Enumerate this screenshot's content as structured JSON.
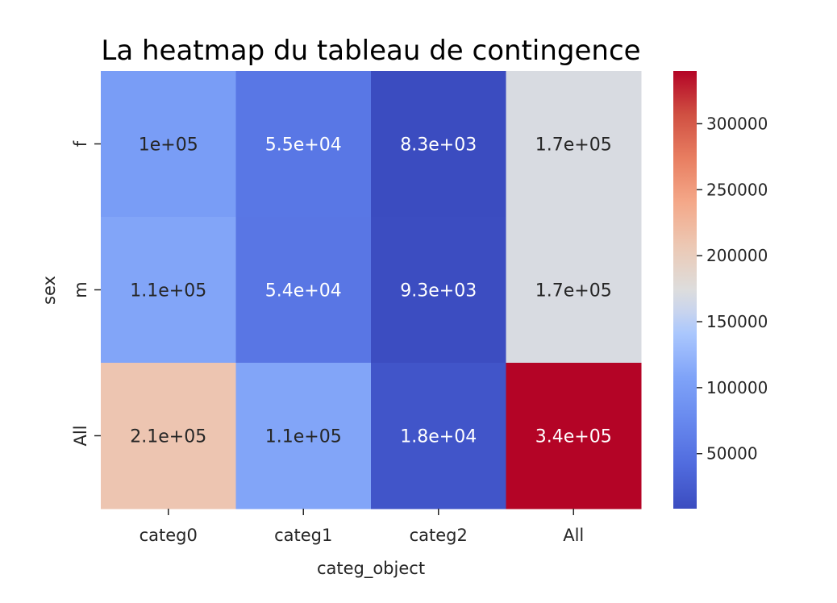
{
  "chart_data": {
    "type": "heatmap",
    "title": "La heatmap du tableau de contingence",
    "xlabel": "categ_object",
    "ylabel": "sex",
    "x_categories": [
      "categ0",
      "categ1",
      "categ2",
      "All"
    ],
    "y_categories": [
      "f",
      "m",
      "All"
    ],
    "values": [
      [
        100000,
        55000,
        8300,
        170000
      ],
      [
        110000,
        54000,
        9300,
        170000
      ],
      [
        210000,
        110000,
        18000,
        340000
      ]
    ],
    "cell_labels": [
      [
        "1e+05",
        "5.5e+04",
        "8.3e+03",
        "1.7e+05"
      ],
      [
        "1.1e+05",
        "5.4e+04",
        "9.3e+03",
        "1.7e+05"
      ],
      [
        "2.1e+05",
        "1.1e+05",
        "1.8e+04",
        "3.4e+05"
      ]
    ],
    "colormap": "coolwarm",
    "colorbar": {
      "range": [
        8300,
        340000
      ],
      "ticks": [
        50000,
        100000,
        150000,
        200000,
        250000,
        300000
      ],
      "tick_labels": [
        "50000",
        "100000",
        "150000",
        "200000",
        "250000",
        "300000"
      ]
    },
    "grid": false,
    "legend": "colorbar-right"
  }
}
